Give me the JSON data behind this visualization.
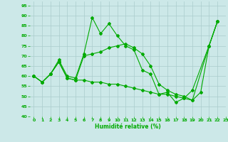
{
  "xlabel": "Humidité relative (%)",
  "xlim": [
    -0.5,
    23
  ],
  "ylim": [
    40,
    97
  ],
  "yticks": [
    40,
    45,
    50,
    55,
    60,
    65,
    70,
    75,
    80,
    85,
    90,
    95
  ],
  "xticks": [
    0,
    1,
    2,
    3,
    4,
    5,
    6,
    7,
    8,
    9,
    10,
    11,
    12,
    13,
    14,
    15,
    16,
    17,
    18,
    19,
    20,
    21,
    22,
    23
  ],
  "background_color": "#cce8e8",
  "grid_color": "#aacccc",
  "line_color": "#00aa00",
  "lines": [
    {
      "x": [
        0,
        1,
        2,
        3,
        4,
        5,
        6,
        7,
        8,
        9,
        10,
        11,
        12,
        13,
        14,
        15,
        16,
        17,
        18,
        19,
        21,
        22
      ],
      "y": [
        60,
        57,
        61,
        68,
        60,
        59,
        71,
        89,
        81,
        86,
        80,
        75,
        73,
        63,
        61,
        51,
        52,
        47,
        49,
        53,
        75,
        87
      ]
    },
    {
      "x": [
        0,
        1,
        2,
        3,
        4,
        5,
        6,
        7,
        8,
        9,
        10,
        11,
        12,
        13,
        14,
        15,
        16,
        17,
        18,
        19,
        21,
        22
      ],
      "y": [
        60,
        57,
        61,
        67,
        59,
        58,
        70,
        71,
        72,
        74,
        75,
        76,
        74,
        71,
        65,
        56,
        53,
        51,
        50,
        48,
        75,
        87
      ]
    },
    {
      "x": [
        0,
        1,
        2,
        3,
        4,
        5,
        6,
        7,
        8,
        9,
        10,
        11,
        12,
        13,
        14,
        15,
        16,
        17,
        18,
        19,
        20,
        21,
        22
      ],
      "y": [
        60,
        57,
        61,
        67,
        59,
        58,
        58,
        57,
        57,
        56,
        56,
        55,
        54,
        53,
        52,
        51,
        51,
        50,
        49,
        48,
        52,
        75,
        87
      ]
    }
  ]
}
